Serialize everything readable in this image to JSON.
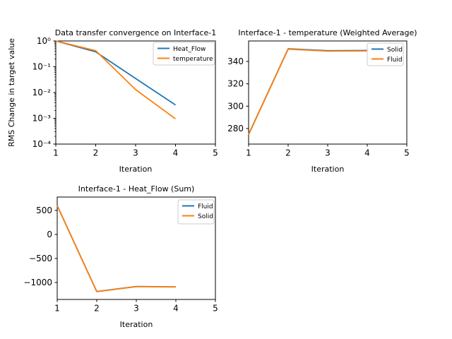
{
  "figure": {
    "background": "#ffffff",
    "text_color": "#000000",
    "axis_color": "#000000",
    "legend_border_color": "#cccccc",
    "series_colors": {
      "blue": "#1f77b4",
      "orange": "#ff7f0e"
    }
  },
  "chart_data": [
    {
      "id": "interface1-convergence",
      "type": "line",
      "title": "Data transfer convergence on Interface-1",
      "xlabel": "Iteration",
      "ylabel": "RMS Change in target value",
      "yscale": "log",
      "xlim": [
        1,
        5
      ],
      "ylim": [
        0.0001,
        1.0
      ],
      "grid": false,
      "legend_position": "upper right",
      "xticks": [
        1,
        2,
        3,
        4,
        5
      ],
      "yticks": [
        {
          "value": 1.0,
          "label": "10⁰"
        },
        {
          "value": 0.1,
          "label": "10⁻¹"
        },
        {
          "value": 0.01,
          "label": "10⁻²"
        },
        {
          "value": 0.001,
          "label": "10⁻³"
        },
        {
          "value": 0.0001,
          "label": "10⁻⁴"
        }
      ],
      "x": [
        1,
        2,
        3,
        4
      ],
      "series": [
        {
          "name": "Heat_Flow",
          "color": "#1f77b4",
          "values": [
            1.0,
            0.38,
            0.035,
            0.0033
          ]
        },
        {
          "name": "temperature",
          "color": "#ff7f0e",
          "values": [
            1.0,
            0.42,
            0.013,
            0.00095
          ]
        }
      ]
    },
    {
      "id": "interface1-temperature-weighted-average",
      "type": "line",
      "title": "Interface-1 - temperature (Weighted Average)",
      "xlabel": "Iteration",
      "ylabel": "",
      "yscale": "linear",
      "xlim": [
        1,
        5
      ],
      "ylim": [
        266.1,
        358.3
      ],
      "grid": false,
      "legend_position": "upper right",
      "xticks": [
        1,
        2,
        3,
        4,
        5
      ],
      "yticks": [
        {
          "value": 280,
          "label": "280"
        },
        {
          "value": 300,
          "label": "300"
        },
        {
          "value": 320,
          "label": "320"
        },
        {
          "value": 340,
          "label": "340"
        }
      ],
      "x": [
        1,
        2,
        3,
        4
      ],
      "series": [
        {
          "name": "Solid",
          "color": "#1f77b4",
          "values": [
            274.8,
            351.3,
            349.6,
            349.8
          ]
        },
        {
          "name": "Fluid",
          "color": "#ff7f0e",
          "values": [
            274.5,
            351.0,
            349.2,
            349.4
          ]
        }
      ]
    },
    {
      "id": "interface1-heat-flow-sum",
      "type": "line",
      "title": "Interface-1 - Heat_Flow (Sum)",
      "xlabel": "Iteration",
      "ylabel": "",
      "yscale": "linear",
      "xlim": [
        1,
        5
      ],
      "ylim": [
        -1353,
        779
      ],
      "grid": false,
      "legend_position": "upper right",
      "xticks": [
        1,
        2,
        3,
        4,
        5
      ],
      "yticks": [
        {
          "value": 500,
          "label": "500"
        },
        {
          "value": 0,
          "label": "0"
        },
        {
          "value": -500,
          "label": "−500"
        },
        {
          "value": -1000,
          "label": "−1000"
        }
      ],
      "x": [
        1,
        2,
        3,
        4
      ],
      "series": [
        {
          "name": "Fluid",
          "color": "#1f77b4",
          "values": [
            600,
            -1188,
            -1083,
            -1090
          ]
        },
        {
          "name": "Solid",
          "color": "#ff7f0e",
          "values": [
            597,
            -1191,
            -1086,
            -1093
          ]
        }
      ]
    }
  ]
}
